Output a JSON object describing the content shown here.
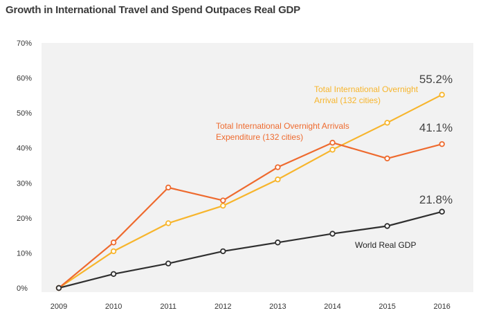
{
  "title": "Growth in International Travel and Spend Outpaces Real GDP",
  "chart_data": {
    "type": "line",
    "title": "Growth in International Travel and Spend Outpaces Real GDP",
    "x": [
      "2009",
      "2010",
      "2011",
      "2012",
      "2013",
      "2014",
      "2015",
      "2016"
    ],
    "ylim": [
      0,
      70
    ],
    "yticks": [
      "0%",
      "10%",
      "20%",
      "30%",
      "40%",
      "50%",
      "60%",
      "70%"
    ],
    "grid": false,
    "series": [
      {
        "name": "Total International Overnight Arrival (132 cities)",
        "label_lines": [
          "Total International Overnight",
          "Arrival (132 cities)"
        ],
        "color": "#F7B52C",
        "values": [
          0,
          10.5,
          18.5,
          23.5,
          31,
          39.5,
          47.2,
          55.2
        ],
        "end_label": "55.2%"
      },
      {
        "name": "Total International Overnight Arrivals Expenditure (132 cities)",
        "label_lines": [
          "Total International Overnight Arrivals",
          "Expenditure (132 cities)"
        ],
        "color": "#EE6A2E",
        "values": [
          0,
          13,
          28.7,
          25,
          34.5,
          41.5,
          37,
          41.1
        ],
        "end_label": "41.1%"
      },
      {
        "name": "World Real GDP",
        "label_lines": [
          "World Real GDP"
        ],
        "color": "#2f2f2f",
        "values": [
          0,
          4,
          7,
          10.5,
          13,
          15.5,
          17.7,
          21.8
        ],
        "end_label": "21.8%"
      }
    ]
  }
}
